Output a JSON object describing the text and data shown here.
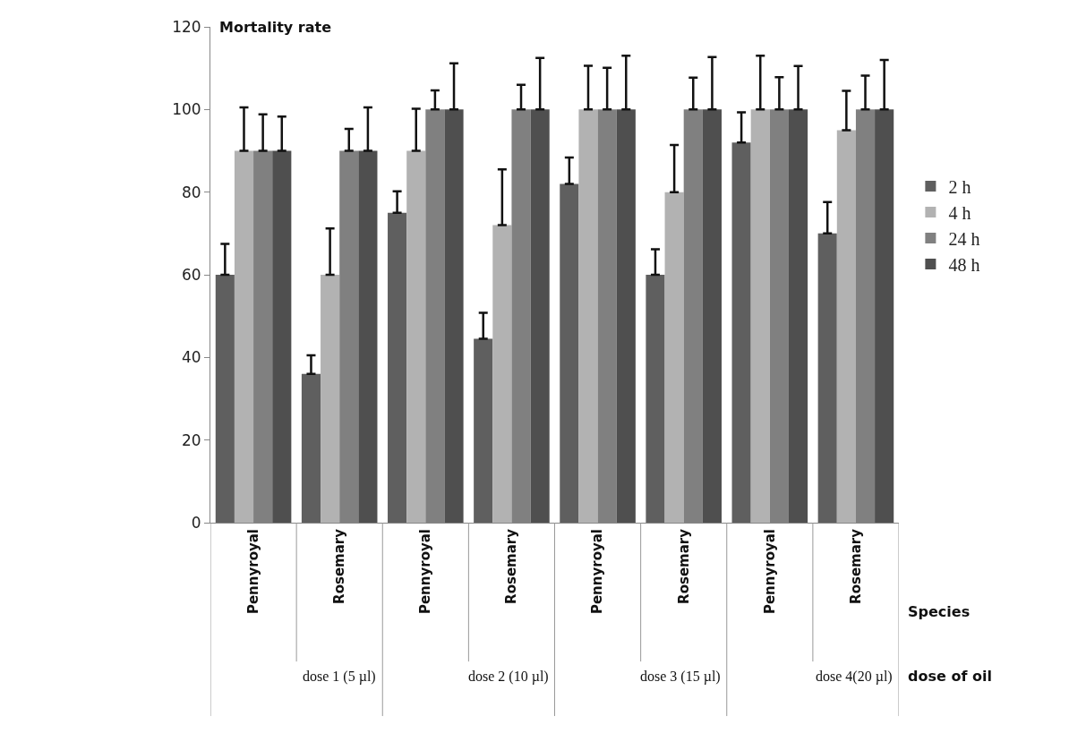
{
  "chart_data": {
    "type": "bar",
    "ylabel": "Mortality rate",
    "xlabel": "Species",
    "categories": [
      "Pennyroyal",
      "Rosemary",
      "Pennyroyal",
      "Rosemary",
      "Pennyroyal",
      "Rosemary",
      "Pennyroyal",
      "Rosemary"
    ],
    "series": [
      {
        "name": "2 h",
        "color": "#5f5f5f",
        "values": [
          60,
          36,
          75,
          44.5,
          82,
          60,
          92,
          70
        ],
        "errors": [
          [
            60,
            67.5
          ],
          [
            36,
            40.5
          ],
          [
            75,
            80.2
          ],
          [
            44.5,
            50.8
          ],
          [
            82,
            88.4
          ],
          [
            60,
            66.2
          ],
          [
            92,
            99.3
          ],
          [
            70,
            77.6
          ]
        ]
      },
      {
        "name": "4 h",
        "color": "#b2b2b2",
        "values": [
          90,
          60,
          90,
          72,
          100,
          80,
          100,
          95
        ],
        "errors": [
          [
            90,
            100.5
          ],
          [
            60,
            71.2
          ],
          [
            90,
            100.2
          ],
          [
            72,
            85.5
          ],
          [
            100,
            110.6
          ],
          [
            80,
            91.4
          ],
          [
            100,
            113
          ],
          [
            95,
            104.5
          ]
        ]
      },
      {
        "name": "24 h",
        "color": "#808080",
        "values": [
          90,
          90,
          100,
          100,
          100,
          100,
          100,
          100
        ],
        "errors": [
          [
            90,
            98.8
          ],
          [
            90,
            95.3
          ],
          [
            100,
            104.6
          ],
          [
            100,
            106
          ],
          [
            100,
            110.1
          ],
          [
            100,
            107.7
          ],
          [
            100,
            107.8
          ],
          [
            100,
            108.2
          ]
        ]
      },
      {
        "name": "48 h",
        "color": "#4f4f4f",
        "values": [
          90,
          90,
          100,
          100,
          100,
          100,
          100,
          100
        ],
        "errors": [
          [
            90,
            98.3
          ],
          [
            90,
            100.5
          ],
          [
            100,
            111.2
          ],
          [
            100,
            112.5
          ],
          [
            100,
            113
          ],
          [
            100,
            112.7
          ],
          [
            100,
            110.5
          ],
          [
            100,
            112
          ]
        ]
      }
    ],
    "annotations": [
      "dose 1 (5 µl)",
      "dose 2 (10 µl)",
      "dose 3 (15 µl)",
      "dose 4(20 µl)",
      "dose of oil"
    ],
    "ylim": [
      0,
      120
    ],
    "yticks": [
      0,
      20,
      40,
      60,
      80,
      100,
      120
    ],
    "legend": "right"
  }
}
